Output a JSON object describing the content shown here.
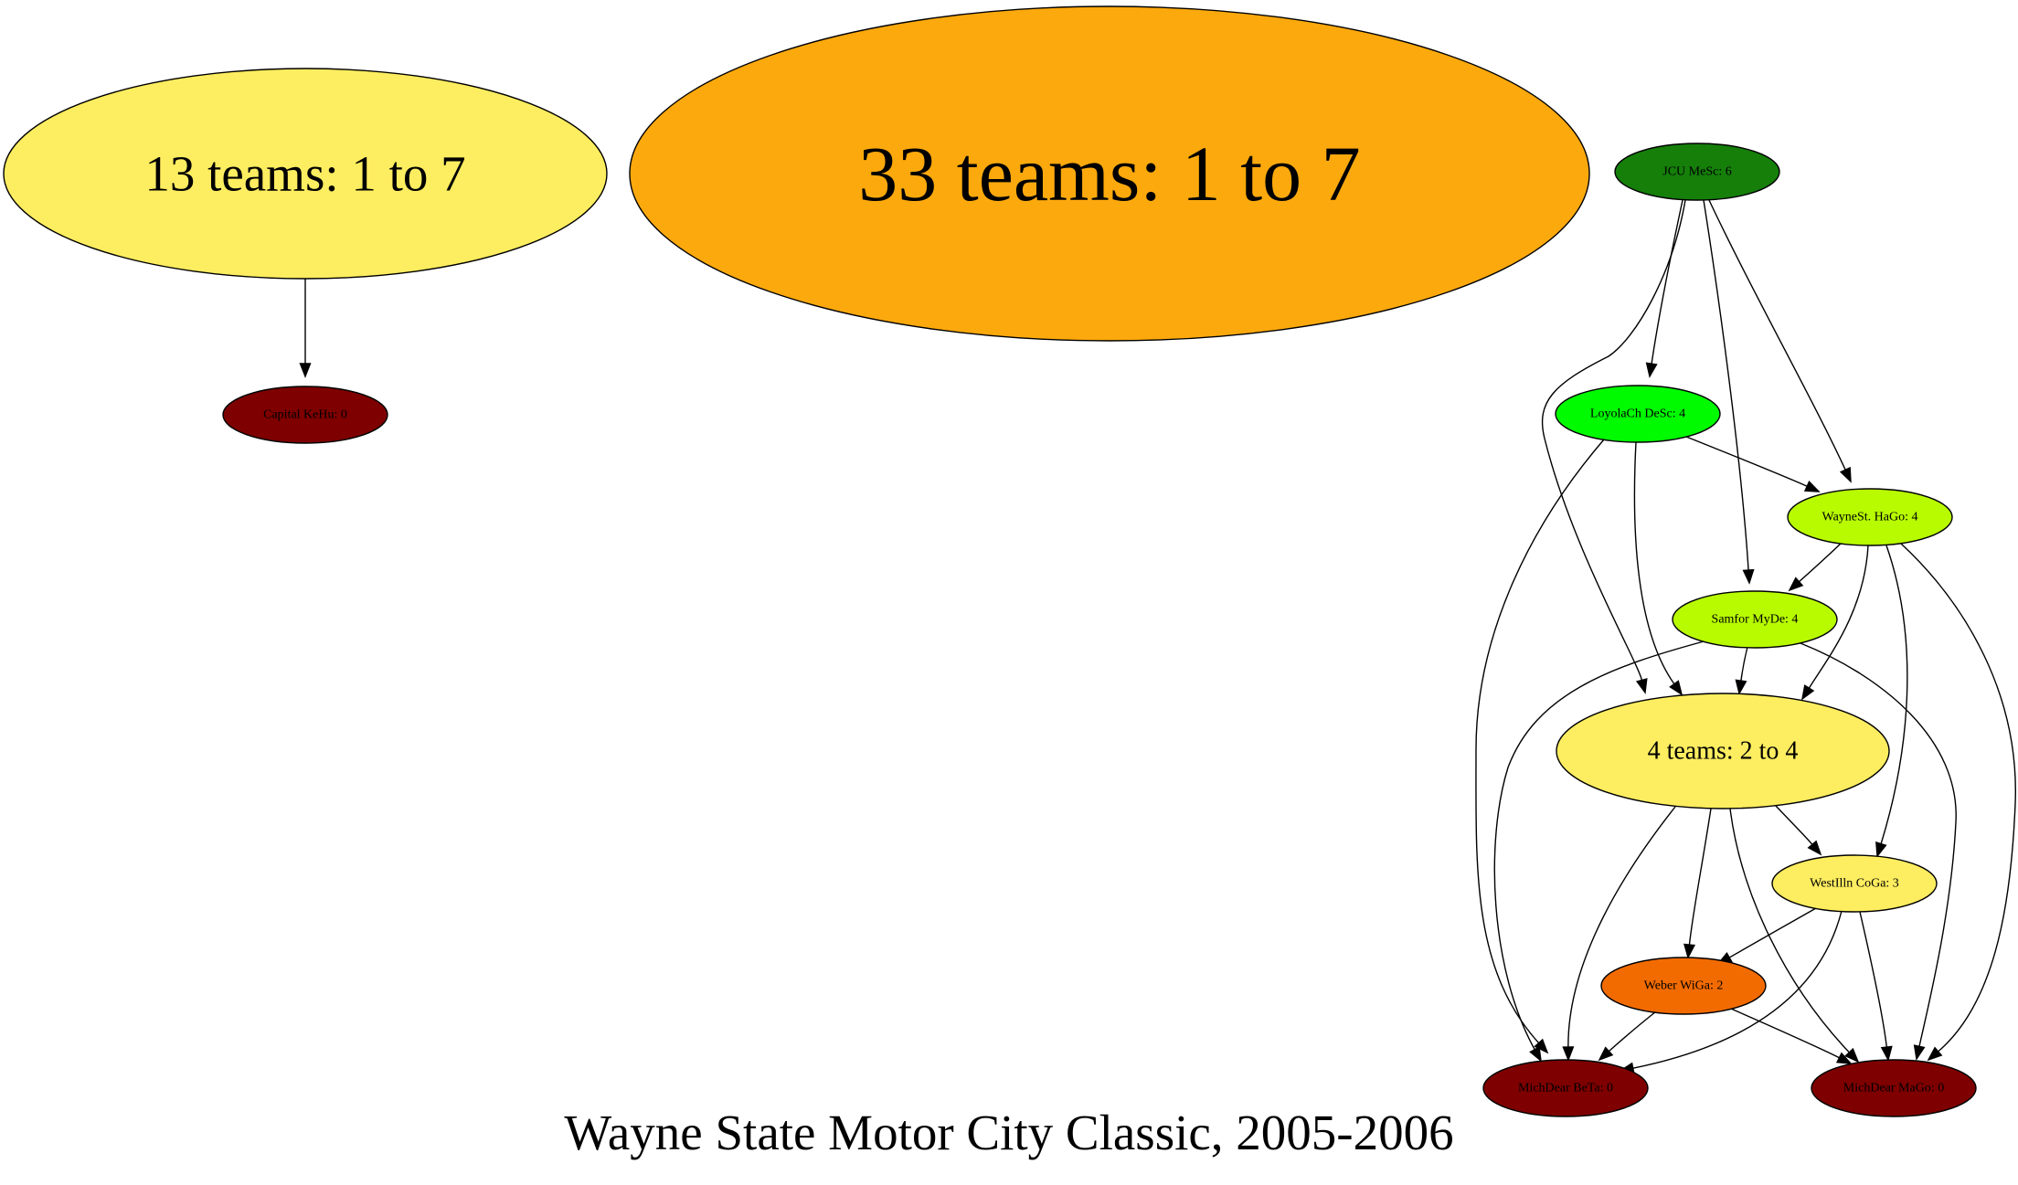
{
  "graph": {
    "title": "Wayne State Motor City Classic, 2005-2006",
    "nodes": [
      {
        "id": "g13",
        "label": "13 teams: 1 to 7",
        "fill": "#fded60"
      },
      {
        "id": "g33",
        "label": "33 teams: 1 to 7",
        "fill": "#fca90d"
      },
      {
        "id": "jcu",
        "label": "JCU MeSc: 6",
        "fill": "#157f0a"
      },
      {
        "id": "cap",
        "label": "Capital KeHu: 0",
        "fill": "#7e0000"
      },
      {
        "id": "loy",
        "label": "LoyolaCh DeSc: 4",
        "fill": "#00fb00"
      },
      {
        "id": "way",
        "label": "WayneSt. HaGo: 4",
        "fill": "#b8fb00"
      },
      {
        "id": "sam",
        "label": "Samfor MyDe: 4",
        "fill": "#b8fb00"
      },
      {
        "id": "g4",
        "label": "4 teams: 2 to 4",
        "fill": "#fded60"
      },
      {
        "id": "wes",
        "label": "WestIlln CoGa: 3",
        "fill": "#fded60"
      },
      {
        "id": "web",
        "label": "Weber WiGa: 2",
        "fill": "#f26b00"
      },
      {
        "id": "mbe",
        "label": "MichDear BeTa: 0",
        "fill": "#7e0000"
      },
      {
        "id": "mma",
        "label": "MichDear MaGo: 0",
        "fill": "#7e0000"
      }
    ],
    "edges": [
      {
        "from": "g13",
        "to": "cap"
      },
      {
        "from": "jcu",
        "to": "loy"
      },
      {
        "from": "jcu",
        "to": "way"
      },
      {
        "from": "jcu",
        "to": "sam"
      },
      {
        "from": "jcu",
        "to": "g4"
      },
      {
        "from": "loy",
        "to": "way"
      },
      {
        "from": "loy",
        "to": "g4"
      },
      {
        "from": "loy",
        "to": "mbe"
      },
      {
        "from": "way",
        "to": "sam"
      },
      {
        "from": "way",
        "to": "g4"
      },
      {
        "from": "way",
        "to": "wes"
      },
      {
        "from": "way",
        "to": "mma"
      },
      {
        "from": "sam",
        "to": "g4"
      },
      {
        "from": "sam",
        "to": "mbe"
      },
      {
        "from": "sam",
        "to": "mma"
      },
      {
        "from": "g4",
        "to": "wes"
      },
      {
        "from": "g4",
        "to": "web"
      },
      {
        "from": "g4",
        "to": "mbe"
      },
      {
        "from": "g4",
        "to": "mma"
      },
      {
        "from": "wes",
        "to": "web"
      },
      {
        "from": "wes",
        "to": "mbe"
      },
      {
        "from": "wes",
        "to": "mma"
      },
      {
        "from": "web",
        "to": "mbe"
      },
      {
        "from": "web",
        "to": "mma"
      }
    ]
  }
}
